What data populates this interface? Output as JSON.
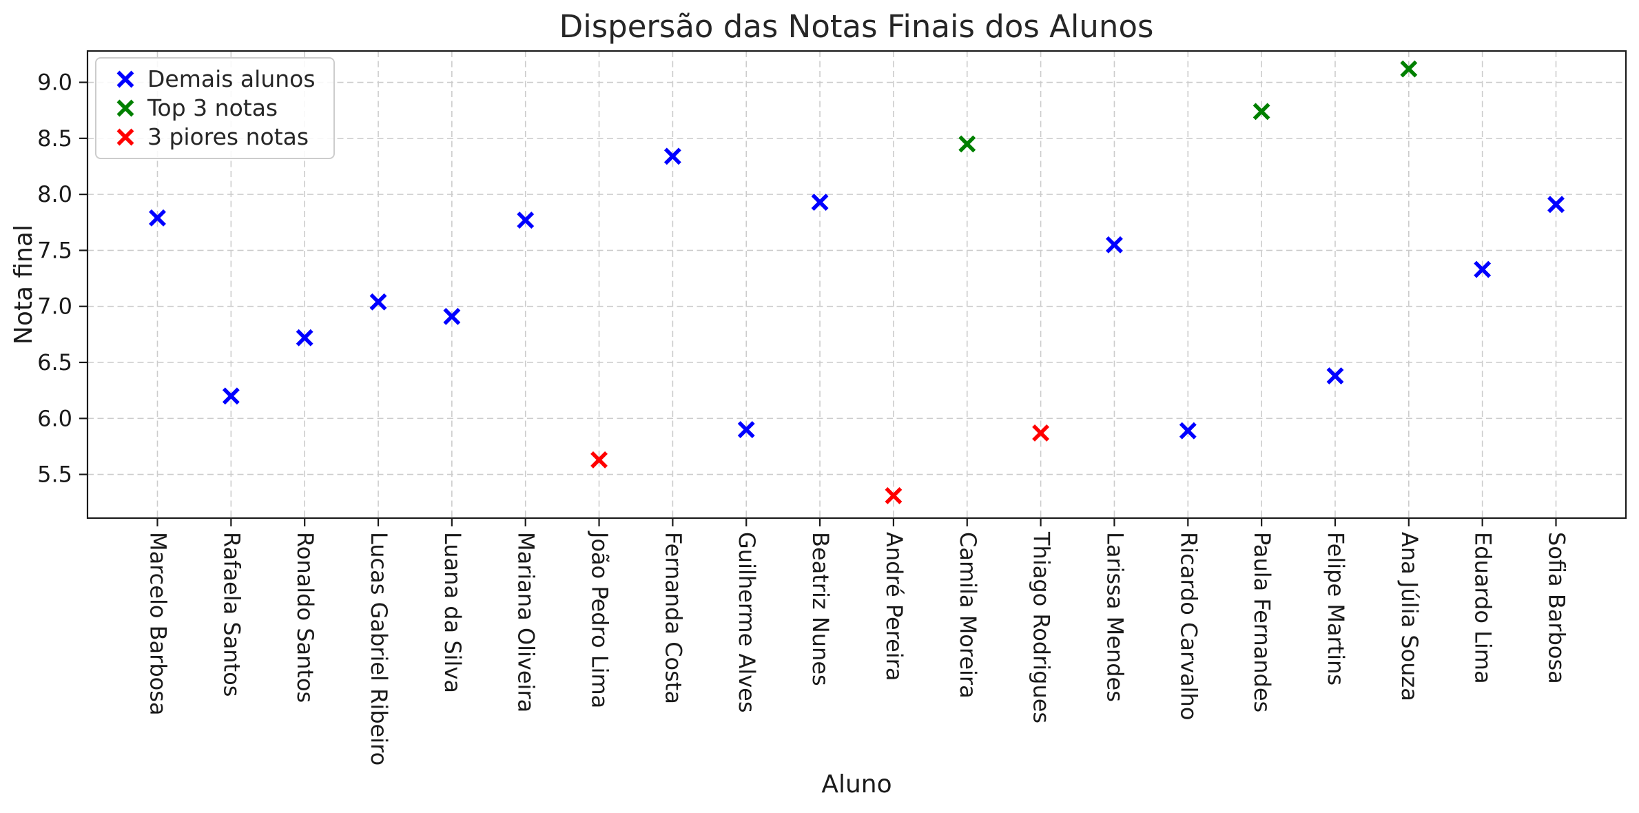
{
  "chart_data": {
    "type": "scatter",
    "title": "Dispersão das Notas Finais dos Alunos",
    "xlabel": "Aluno",
    "ylabel": "Nota final",
    "marker": "x",
    "categories": [
      "Marcelo Barbosa",
      "Rafaela Santos",
      "Ronaldo Santos",
      "Lucas Gabriel Ribeiro",
      "Luana da Silva",
      "Mariana Oliveira",
      "João Pedro Lima",
      "Fernanda Costa",
      "Guilherme Alves",
      "Beatriz Nunes",
      "André Pereira",
      "Camila Moreira",
      "Thiago Rodrigues",
      "Larissa Mendes",
      "Ricardo Carvalho",
      "Paula Fernandes",
      "Felipe Martins",
      "Ana Júlia Souza",
      "Eduardo Lima",
      "Sofia Barbosa"
    ],
    "values": [
      7.79,
      6.2,
      6.72,
      7.04,
      6.91,
      7.77,
      5.63,
      8.34,
      5.9,
      7.93,
      5.31,
      8.45,
      5.87,
      7.55,
      5.89,
      8.74,
      6.38,
      9.12,
      7.33,
      7.91
    ],
    "groups": [
      "other",
      "other",
      "other",
      "other",
      "other",
      "other",
      "worst",
      "other",
      "other",
      "other",
      "worst",
      "top",
      "worst",
      "other",
      "other",
      "top",
      "other",
      "top",
      "other",
      "other"
    ],
    "series": [
      {
        "key": "other",
        "name": "Demais alunos",
        "color": "#0000ff"
      },
      {
        "key": "top",
        "name": "Top 3 notas",
        "color": "#008000"
      },
      {
        "key": "worst",
        "name": "3 piores notas",
        "color": "#ff0000"
      }
    ],
    "yticks": [
      5.5,
      6.0,
      6.5,
      7.0,
      7.5,
      8.0,
      8.5,
      9.0
    ],
    "ytick_labels": [
      "5.5",
      "6.0",
      "6.5",
      "7.0",
      "7.5",
      "8.0",
      "8.5",
      "9.0"
    ],
    "ylim": [
      5.11,
      9.28
    ],
    "grid": {
      "on": true,
      "style": "dashed",
      "color": "#cccccc"
    },
    "legend": {
      "position": "upper-left"
    },
    "axis_color": "#1a1a1a",
    "text_color": "#1a1a1a"
  }
}
